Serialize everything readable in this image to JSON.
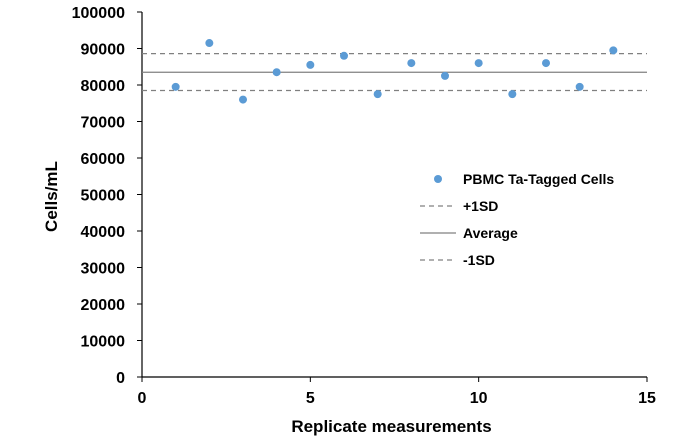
{
  "chart_data": {
    "type": "scatter",
    "title": "",
    "xlabel": "Replicate measurements",
    "ylabel": "Cells/mL",
    "xlim": [
      0,
      15
    ],
    "ylim": [
      0,
      100000
    ],
    "x_ticks": [
      0,
      5,
      10,
      15
    ],
    "y_ticks": [
      0,
      10000,
      20000,
      30000,
      40000,
      50000,
      60000,
      70000,
      80000,
      90000,
      100000
    ],
    "grid": false,
    "legend_position": "right",
    "series": [
      {
        "name": "PBMC Ta-Tagged Cells",
        "type": "scatter",
        "color": "#5B9BD5",
        "x": [
          1,
          2,
          3,
          4,
          5,
          6,
          7,
          8,
          9,
          10,
          11,
          12,
          13,
          14
        ],
        "y": [
          79500,
          91500,
          76000,
          83500,
          85500,
          88000,
          77500,
          86000,
          82500,
          86000,
          77500,
          86000,
          79500,
          89500
        ]
      },
      {
        "name": "+1SD",
        "type": "hline",
        "style": "dashed",
        "color": "#808080",
        "y": 88600
      },
      {
        "name": "Average",
        "type": "hline",
        "style": "solid",
        "color": "#808080",
        "y": 83500
      },
      {
        "name": "-1SD",
        "type": "hline",
        "style": "dashed",
        "color": "#808080",
        "y": 78500
      }
    ]
  }
}
